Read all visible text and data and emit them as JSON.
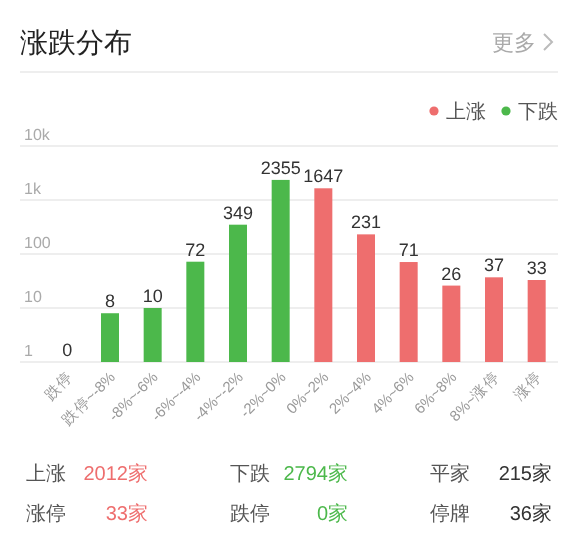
{
  "chart_data": {
    "type": "bar",
    "title": "涨跌分布",
    "categories": [
      "跌停",
      "跌停~-8%",
      "-8%~-6%",
      "-6%~-4%",
      "-4%~-2%",
      "-2%~0%",
      "0%~2%",
      "2%~4%",
      "4%~6%",
      "6%~8%",
      "8%~涨停",
      "涨停"
    ],
    "series": [
      {
        "name": "上涨",
        "color": "#ee6e6e",
        "values": [
          null,
          null,
          null,
          null,
          null,
          null,
          1647,
          231,
          71,
          26,
          37,
          33
        ]
      },
      {
        "name": "下跌",
        "color": "#4cb84b",
        "values": [
          null,
          8,
          10,
          72,
          349,
          2355,
          null,
          null,
          null,
          null,
          null,
          null
        ],
        "value_labels": [
          "0",
          "8",
          "10",
          "72",
          "349",
          "2355",
          null,
          null,
          null,
          null,
          null,
          null
        ]
      }
    ],
    "log": "y",
    "ylim": [
      1,
      10000
    ],
    "yticks": [
      1,
      10,
      100,
      {
        "value": 1000,
        "label": "1k"
      },
      {
        "value": 10000,
        "label": "10k"
      }
    ],
    "grid": "y",
    "legend": "top right",
    "data_labels": true,
    "annotations": [
      "更多",
      "上涨",
      "2012家",
      "下跌",
      "2794家",
      "平家",
      "215家",
      "涨停",
      "33家",
      "跌停",
      "0家",
      "停牌",
      "36家"
    ]
  }
}
